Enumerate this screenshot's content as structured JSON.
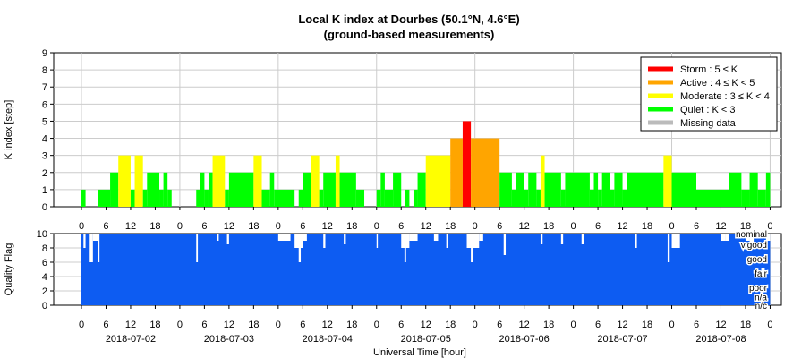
{
  "chart_data": [
    {
      "type": "bar",
      "title": "Local K index at Dourbes (50.1°N, 4.6°E)",
      "subtitle": "(ground-based measurements)",
      "ylabel": "K index [step]",
      "ylim": [
        0,
        9
      ],
      "yticks": [
        "0",
        "1",
        "2",
        "3",
        "4",
        "5",
        "6",
        "7",
        "8",
        "9"
      ],
      "x_tick_labels": [
        "0",
        "6",
        "12",
        "18",
        "0",
        "6",
        "12",
        "18",
        "0",
        "6",
        "12",
        "18",
        "0",
        "6",
        "12",
        "18",
        "0",
        "6",
        "12",
        "18",
        "0",
        "6",
        "12",
        "18",
        "0",
        "6",
        "12",
        "18",
        "0"
      ],
      "x_range_hours": [
        -1,
        169
      ],
      "grid": true,
      "legend_placement": "top-right",
      "legend": [
        {
          "label": "Storm : 5 ≤ K",
          "color": "#ff0000"
        },
        {
          "label": "Active : 4 ≤ K < 5",
          "color": "#ffa500"
        },
        {
          "label": "Moderate : 3 ≤ K < 4",
          "color": "#ffff00"
        },
        {
          "label": "Quiet : K < 3",
          "color": "#00ff00"
        },
        {
          "label": "Missing data",
          "color": "#bbbbbb"
        }
      ],
      "series": [
        {
          "start_hour": 0,
          "end_hour": 1,
          "value": 1
        },
        {
          "start_hour": 1,
          "end_hour": 4,
          "value": 0
        },
        {
          "start_hour": 4,
          "end_hour": 7,
          "value": 1
        },
        {
          "start_hour": 7,
          "end_hour": 9,
          "value": 2
        },
        {
          "start_hour": 9,
          "end_hour": 12,
          "value": 3
        },
        {
          "start_hour": 12,
          "end_hour": 13,
          "value": 1
        },
        {
          "start_hour": 13,
          "end_hour": 15,
          "value": 3
        },
        {
          "start_hour": 15,
          "end_hour": 16,
          "value": 1
        },
        {
          "start_hour": 16,
          "end_hour": 19,
          "value": 2
        },
        {
          "start_hour": 19,
          "end_hour": 20,
          "value": 1
        },
        {
          "start_hour": 20,
          "end_hour": 21,
          "value": 2
        },
        {
          "start_hour": 21,
          "end_hour": 22,
          "value": 1
        },
        {
          "start_hour": 22,
          "end_hour": 28,
          "value": 0
        },
        {
          "start_hour": 28,
          "end_hour": 29,
          "value": 1
        },
        {
          "start_hour": 29,
          "end_hour": 30,
          "value": 2
        },
        {
          "start_hour": 30,
          "end_hour": 31,
          "value": 1
        },
        {
          "start_hour": 31,
          "end_hour": 32,
          "value": 2
        },
        {
          "start_hour": 32,
          "end_hour": 35,
          "value": 3
        },
        {
          "start_hour": 35,
          "end_hour": 36,
          "value": 1
        },
        {
          "start_hour": 36,
          "end_hour": 42,
          "value": 2
        },
        {
          "start_hour": 42,
          "end_hour": 44,
          "value": 3
        },
        {
          "start_hour": 44,
          "end_hour": 46,
          "value": 1
        },
        {
          "start_hour": 46,
          "end_hour": 47,
          "value": 2
        },
        {
          "start_hour": 47,
          "end_hour": 52,
          "value": 1
        },
        {
          "start_hour": 52,
          "end_hour": 53,
          "value": 0
        },
        {
          "start_hour": 53,
          "end_hour": 54,
          "value": 1
        },
        {
          "start_hour": 54,
          "end_hour": 56,
          "value": 2
        },
        {
          "start_hour": 56,
          "end_hour": 58,
          "value": 3
        },
        {
          "start_hour": 58,
          "end_hour": 59,
          "value": 1
        },
        {
          "start_hour": 59,
          "end_hour": 62,
          "value": 2
        },
        {
          "start_hour": 62,
          "end_hour": 63,
          "value": 3
        },
        {
          "start_hour": 63,
          "end_hour": 67,
          "value": 2
        },
        {
          "start_hour": 67,
          "end_hour": 69,
          "value": 1
        },
        {
          "start_hour": 69,
          "end_hour": 72,
          "value": 0
        },
        {
          "start_hour": 72,
          "end_hour": 73,
          "value": 1
        },
        {
          "start_hour": 73,
          "end_hour": 74,
          "value": 2
        },
        {
          "start_hour": 74,
          "end_hour": 76,
          "value": 1
        },
        {
          "start_hour": 76,
          "end_hour": 78,
          "value": 2
        },
        {
          "start_hour": 78,
          "end_hour": 79,
          "value": 0
        },
        {
          "start_hour": 79,
          "end_hour": 80,
          "value": 1
        },
        {
          "start_hour": 80,
          "end_hour": 81,
          "value": 0
        },
        {
          "start_hour": 81,
          "end_hour": 82,
          "value": 1
        },
        {
          "start_hour": 82,
          "end_hour": 84,
          "value": 2
        },
        {
          "start_hour": 84,
          "end_hour": 90,
          "value": 3
        },
        {
          "start_hour": 90,
          "end_hour": 93,
          "value": 4
        },
        {
          "start_hour": 93,
          "end_hour": 95,
          "value": 5
        },
        {
          "start_hour": 95,
          "end_hour": 102,
          "value": 4
        },
        {
          "start_hour": 102,
          "end_hour": 105,
          "value": 2
        },
        {
          "start_hour": 105,
          "end_hour": 106,
          "value": 1
        },
        {
          "start_hour": 106,
          "end_hour": 108,
          "value": 2
        },
        {
          "start_hour": 108,
          "end_hour": 109,
          "value": 1
        },
        {
          "start_hour": 109,
          "end_hour": 111,
          "value": 2
        },
        {
          "start_hour": 111,
          "end_hour": 112,
          "value": 1
        },
        {
          "start_hour": 112,
          "end_hour": 113,
          "value": 3
        },
        {
          "start_hour": 113,
          "end_hour": 117,
          "value": 2
        },
        {
          "start_hour": 117,
          "end_hour": 118,
          "value": 1
        },
        {
          "start_hour": 118,
          "end_hour": 124,
          "value": 2
        },
        {
          "start_hour": 124,
          "end_hour": 125,
          "value": 1
        },
        {
          "start_hour": 125,
          "end_hour": 126,
          "value": 2
        },
        {
          "start_hour": 126,
          "end_hour": 127,
          "value": 1
        },
        {
          "start_hour": 127,
          "end_hour": 129,
          "value": 2
        },
        {
          "start_hour": 129,
          "end_hour": 130,
          "value": 1
        },
        {
          "start_hour": 130,
          "end_hour": 132,
          "value": 2
        },
        {
          "start_hour": 132,
          "end_hour": 133,
          "value": 1
        },
        {
          "start_hour": 133,
          "end_hour": 142,
          "value": 2
        },
        {
          "start_hour": 142,
          "end_hour": 144,
          "value": 3
        },
        {
          "start_hour": 144,
          "end_hour": 150,
          "value": 2
        },
        {
          "start_hour": 150,
          "end_hour": 158,
          "value": 1
        },
        {
          "start_hour": 158,
          "end_hour": 161,
          "value": 2
        },
        {
          "start_hour": 161,
          "end_hour": 163,
          "value": 1
        },
        {
          "start_hour": 163,
          "end_hour": 165,
          "value": 2
        },
        {
          "start_hour": 165,
          "end_hour": 167,
          "value": 1
        },
        {
          "start_hour": 167,
          "end_hour": 168,
          "value": 2
        }
      ]
    },
    {
      "type": "area",
      "ylabel": "Quality Flag",
      "xlabel": "Universal Time [hour]",
      "ylim": [
        0,
        10
      ],
      "yticks": [
        "0",
        "2",
        "4",
        "6",
        "8",
        "10"
      ],
      "flag_labels": [
        {
          "label": "nominal",
          "value": 10
        },
        {
          "label": "v.good",
          "value": 8.5
        },
        {
          "label": "good",
          "value": 6.5
        },
        {
          "label": "fair",
          "value": 4.5
        },
        {
          "label": "poor",
          "value": 2.5
        },
        {
          "label": "n/a",
          "value": 1.2
        },
        {
          "label": "n/c",
          "value": 0
        }
      ],
      "date_labels": [
        "2018-07-02",
        "2018-07-03",
        "2018-07-04",
        "2018-07-05",
        "2018-07-06",
        "2018-07-07",
        "2018-07-08"
      ],
      "x_tick_labels": [
        "0",
        "6",
        "12",
        "18",
        "0",
        "6",
        "12",
        "18",
        "0",
        "6",
        "12",
        "18",
        "0",
        "6",
        "12",
        "18",
        "0",
        "6",
        "12",
        "18",
        "0",
        "6",
        "12",
        "18",
        "0",
        "6",
        "12",
        "18",
        "0"
      ],
      "fill_color": "#0d5cf2",
      "base_value": 10,
      "dips": [
        {
          "start_hour": 0.5,
          "end_hour": 1,
          "value": 8
        },
        {
          "start_hour": 1.8,
          "end_hour": 2.8,
          "value": 6
        },
        {
          "start_hour": 2.8,
          "end_hour": 4,
          "value": 9
        },
        {
          "start_hour": 4,
          "end_hour": 4.4,
          "value": 6
        },
        {
          "start_hour": 28,
          "end_hour": 28.4,
          "value": 6
        },
        {
          "start_hour": 33,
          "end_hour": 33.5,
          "value": 9
        },
        {
          "start_hour": 35.5,
          "end_hour": 36,
          "value": 8.5
        },
        {
          "start_hour": 48,
          "end_hour": 51,
          "value": 9
        },
        {
          "start_hour": 52,
          "end_hour": 54,
          "value": 8
        },
        {
          "start_hour": 53,
          "end_hour": 53.5,
          "value": 6
        },
        {
          "start_hour": 54,
          "end_hour": 55,
          "value": 9
        },
        {
          "start_hour": 59,
          "end_hour": 59.5,
          "value": 8
        },
        {
          "start_hour": 64,
          "end_hour": 64.5,
          "value": 8.5
        },
        {
          "start_hour": 72,
          "end_hour": 72.3,
          "value": 8
        },
        {
          "start_hour": 78,
          "end_hour": 80,
          "value": 8
        },
        {
          "start_hour": 78.8,
          "end_hour": 79.2,
          "value": 6
        },
        {
          "start_hour": 80,
          "end_hour": 82,
          "value": 9
        },
        {
          "start_hour": 86,
          "end_hour": 87,
          "value": 9
        },
        {
          "start_hour": 89,
          "end_hour": 89.5,
          "value": 8
        },
        {
          "start_hour": 94,
          "end_hour": 97,
          "value": 8
        },
        {
          "start_hour": 95,
          "end_hour": 95.5,
          "value": 6
        },
        {
          "start_hour": 97,
          "end_hour": 98,
          "value": 9
        },
        {
          "start_hour": 103,
          "end_hour": 103.5,
          "value": 7
        },
        {
          "start_hour": 112,
          "end_hour": 112.5,
          "value": 8.5
        },
        {
          "start_hour": 117,
          "end_hour": 117.5,
          "value": 8.5
        },
        {
          "start_hour": 122,
          "end_hour": 122.5,
          "value": 8.5
        },
        {
          "start_hour": 135,
          "end_hour": 135.5,
          "value": 8
        },
        {
          "start_hour": 143,
          "end_hour": 143.5,
          "value": 6
        },
        {
          "start_hour": 144,
          "end_hour": 146,
          "value": 8
        },
        {
          "start_hour": 156,
          "end_hour": 157,
          "value": 9
        },
        {
          "start_hour": 157,
          "end_hour": 158,
          "value": 9
        },
        {
          "start_hour": 162,
          "end_hour": 163,
          "value": 9
        },
        {
          "start_hour": 163,
          "end_hour": 164,
          "value": 8
        },
        {
          "start_hour": 167,
          "end_hour": 168,
          "value": 9
        }
      ]
    }
  ]
}
